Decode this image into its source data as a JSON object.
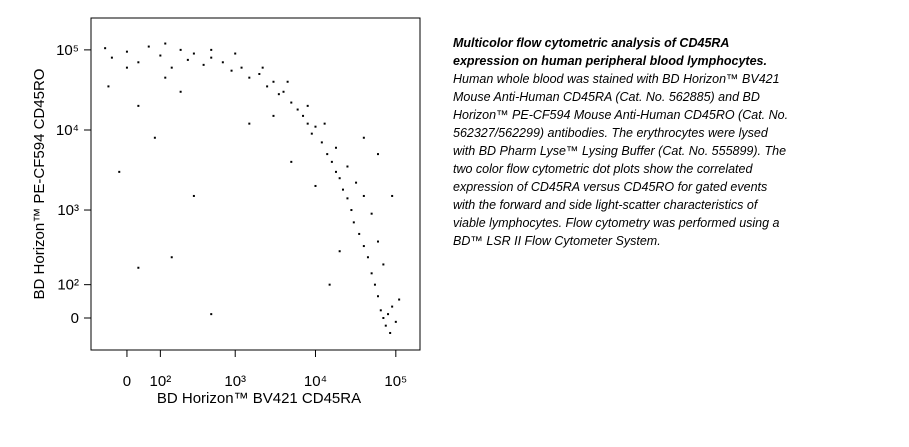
{
  "chart_data": {
    "type": "scatter",
    "xlabel": "BD Horizon™ BV421 CD45RA",
    "ylabel": "BD Horizon™ PE-CF594 CD45RO",
    "xscale": "logicle",
    "yscale": "logicle",
    "xlim": [
      -110,
      200000
    ],
    "ylim": [
      -95,
      250000
    ],
    "xticks": [
      0,
      {
        "value": 100,
        "label": "10²"
      },
      {
        "value": 1000,
        "label": "10³"
      },
      {
        "value": 10000,
        "label": "10⁴"
      },
      {
        "value": 100000,
        "label": "10⁵"
      }
    ],
    "yticks": [
      0,
      {
        "value": 100,
        "label": "10²"
      },
      {
        "value": 1000,
        "label": "10³"
      },
      {
        "value": 10000,
        "label": "10⁴"
      },
      {
        "value": 100000,
        "label": "10⁵"
      }
    ],
    "color": "#000000",
    "x": [
      -40,
      0,
      30,
      60,
      100,
      150,
      200,
      250,
      300,
      400,
      500,
      700,
      900,
      1200,
      1500,
      2000,
      2500,
      3000,
      3500,
      4000,
      5000,
      6000,
      7000,
      8000,
      9000,
      10000,
      12000,
      14000,
      16000,
      18000,
      20000,
      22000,
      25000,
      28000,
      30000,
      35000,
      40000,
      45000,
      50000,
      55000,
      60000,
      65000,
      70000,
      75000,
      80000,
      85000,
      90000,
      100000,
      110000,
      70000,
      60000,
      50000,
      40000,
      32000,
      25000,
      18000,
      13000,
      8000,
      4500,
      2200,
      1000,
      500,
      120,
      0,
      -60,
      30,
      80,
      200,
      -20,
      150,
      30,
      300,
      1500,
      5000,
      20000,
      40000,
      10000,
      -50,
      120,
      3000,
      60000,
      90000,
      15000,
      500
    ],
    "y": [
      80000,
      95000,
      70000,
      110000,
      85000,
      60000,
      100000,
      75000,
      90000,
      65000,
      80000,
      70000,
      55000,
      60000,
      45000,
      50000,
      35000,
      40000,
      28000,
      30000,
      22000,
      18000,
      15000,
      12000,
      9000,
      11000,
      7000,
      5000,
      4000,
      3000,
      2500,
      1800,
      1400,
      1000,
      700,
      500,
      350,
      250,
      150,
      100,
      60,
      20,
      0,
      -20,
      10,
      -40,
      30,
      -10,
      50,
      200,
      400,
      900,
      1500,
      2200,
      3500,
      6000,
      12000,
      20000,
      40000,
      60000,
      90000,
      100000,
      120000,
      60000,
      105000,
      20000,
      8000,
      30000,
      3000,
      250,
      180,
      1500,
      12000,
      4000,
      300,
      8000,
      2000,
      35000,
      45000,
      15000,
      5000,
      1500,
      100,
      10
    ]
  },
  "caption": {
    "title": [
      "Multicolor flow cytometric analysis of CD45RA",
      "expression on human peripheral blood lymphocytes."
    ],
    "body": [
      "Human whole blood was stained with BD Horizon™ BV421",
      "Mouse Anti-Human CD45RA (Cat. No. 562885) and BD",
      "Horizon™ PE-CF594 Mouse Anti-Human CD45RO (Cat. No.",
      "562327/562299) antibodies. The erythrocytes were lysed",
      "with BD Pharm Lyse™ Lysing Buffer (Cat. No. 555899). The",
      "two color flow cytometric dot plots show the correlated",
      "expression of CD45RA versus CD45RO for gated events",
      "with the forward and side light-scatter characteristics of",
      "viable lymphocytes. Flow cytometry was performed using a",
      "BD™ LSR II Flow Cytometer System."
    ]
  }
}
